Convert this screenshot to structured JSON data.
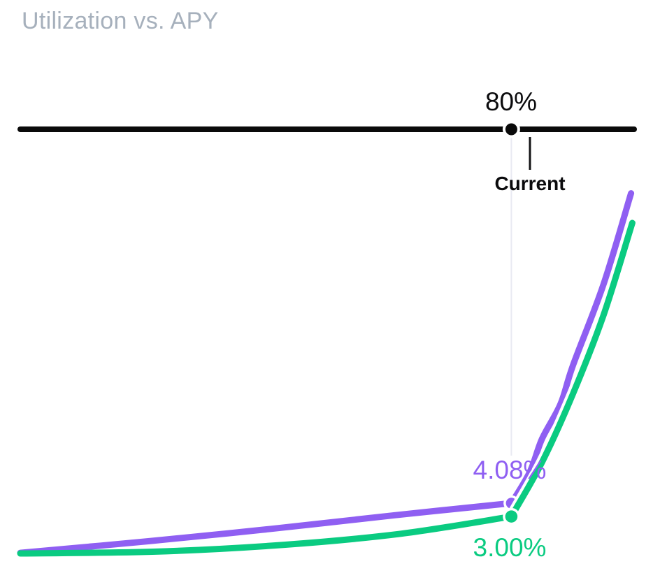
{
  "header": {
    "title": "Utilization vs. APY"
  },
  "slider": {
    "value_label": "80%",
    "marker_label": "Current"
  },
  "colors": {
    "purple": "#8F5FF2",
    "green": "#0ACB81",
    "slider": "#0A0A0A",
    "title_gray": "#A6B0BC",
    "faint_line": "#E9EAF2"
  },
  "chart_data": {
    "type": "line",
    "title": "Utilization vs. APY",
    "x_axis": {
      "label": "Utilization",
      "unit": "%",
      "range": [
        0,
        100
      ],
      "gridlines": false,
      "ticks_visible": false
    },
    "y_axis": {
      "label": "APY",
      "unit": "%",
      "range": [
        0,
        30
      ],
      "visible": false
    },
    "legend": "none",
    "kink_utilization": 80,
    "current_utilization": 80,
    "current_utilization_label": "80%",
    "current_marker_label": "Current",
    "series": [
      {
        "id": "purple",
        "color": "#8F5FF2",
        "current_value_label": "4.08%",
        "current_point": {
          "utilization": 80,
          "apy": 4.08
        },
        "points": [
          [
            0,
            0.05
          ],
          [
            21,
            1.0
          ],
          [
            41,
            2.0
          ],
          [
            61,
            3.1
          ],
          [
            80,
            4.08
          ],
          [
            83,
            6.6
          ],
          [
            85,
            9.3
          ],
          [
            88,
            12.1
          ],
          [
            90,
            15.2
          ],
          [
            95,
            21.8
          ],
          [
            99.5,
            29.2
          ]
        ]
      },
      {
        "id": "green",
        "color": "#0ACB81",
        "current_value_label": "3.00%",
        "current_point": {
          "utilization": 80,
          "apy": 3.0
        },
        "points": [
          [
            0,
            0.0
          ],
          [
            22,
            0.15
          ],
          [
            43,
            0.7
          ],
          [
            62,
            1.6
          ],
          [
            80,
            3.0
          ],
          [
            85,
            7.4
          ],
          [
            90,
            12.9
          ],
          [
            95,
            19.3
          ],
          [
            99.7,
            26.8
          ]
        ]
      }
    ]
  }
}
